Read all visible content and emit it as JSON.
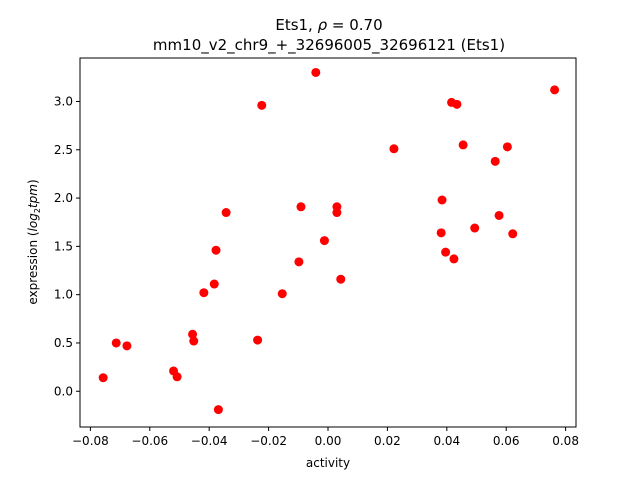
{
  "chart_data": {
    "type": "scatter",
    "title_prefix": "Ets1, ",
    "title_rho_symbol": "ρ",
    "title_rho_value": " = 0.70",
    "subtitle": "mm10_v2_chr9_+_32696005_32696121 (Ets1)",
    "xlabel": "activity",
    "ylabel_prefix": "expression (",
    "ylabel_math": "log",
    "ylabel_sub": "2",
    "ylabel_math2": "tpm",
    "ylabel_suffix": ")",
    "xlim": [
      -0.0835,
      0.0835
    ],
    "ylim": [
      -0.37,
      3.45
    ],
    "xticks": [
      -0.08,
      -0.06,
      -0.04,
      -0.02,
      0.0,
      0.02,
      0.04,
      0.06,
      0.08
    ],
    "xtick_labels": [
      "−0.08",
      "−0.06",
      "−0.04",
      "−0.02",
      "0.00",
      "0.02",
      "0.04",
      "0.06",
      "0.08"
    ],
    "yticks": [
      0.0,
      0.5,
      1.0,
      1.5,
      2.0,
      2.5,
      3.0
    ],
    "ytick_labels": [
      "0.0",
      "0.5",
      "1.0",
      "1.5",
      "2.0",
      "2.5",
      "3.0"
    ],
    "grid": false,
    "marker_color": "#ff0000",
    "points": [
      {
        "x": -0.0757,
        "y": 0.14
      },
      {
        "x": -0.0713,
        "y": 0.5
      },
      {
        "x": -0.0677,
        "y": 0.47
      },
      {
        "x": -0.052,
        "y": 0.21
      },
      {
        "x": -0.0508,
        "y": 0.15
      },
      {
        "x": -0.0456,
        "y": 0.59
      },
      {
        "x": -0.0452,
        "y": 0.52
      },
      {
        "x": -0.0418,
        "y": 1.02
      },
      {
        "x": -0.0383,
        "y": 1.11
      },
      {
        "x": -0.0377,
        "y": 1.46
      },
      {
        "x": -0.0369,
        "y": -0.19
      },
      {
        "x": -0.0343,
        "y": 1.85
      },
      {
        "x": -0.0237,
        "y": 0.53
      },
      {
        "x": -0.0223,
        "y": 2.96
      },
      {
        "x": -0.0154,
        "y": 1.01
      },
      {
        "x": -0.0098,
        "y": 1.34
      },
      {
        "x": -0.0091,
        "y": 1.91
      },
      {
        "x": -0.0041,
        "y": 3.3
      },
      {
        "x": -0.0012,
        "y": 1.56
      },
      {
        "x": 0.003,
        "y": 1.91
      },
      {
        "x": 0.003,
        "y": 1.85
      },
      {
        "x": 0.0043,
        "y": 1.16
      },
      {
        "x": 0.0222,
        "y": 2.51
      },
      {
        "x": 0.0381,
        "y": 1.64
      },
      {
        "x": 0.0384,
        "y": 1.98
      },
      {
        "x": 0.0396,
        "y": 1.44
      },
      {
        "x": 0.0416,
        "y": 2.99
      },
      {
        "x": 0.0424,
        "y": 1.37
      },
      {
        "x": 0.0434,
        "y": 2.97
      },
      {
        "x": 0.0455,
        "y": 2.55
      },
      {
        "x": 0.0494,
        "y": 1.69
      },
      {
        "x": 0.0563,
        "y": 2.38
      },
      {
        "x": 0.0576,
        "y": 1.82
      },
      {
        "x": 0.0604,
        "y": 2.53
      },
      {
        "x": 0.0622,
        "y": 1.63
      },
      {
        "x": 0.0763,
        "y": 3.12
      }
    ]
  }
}
